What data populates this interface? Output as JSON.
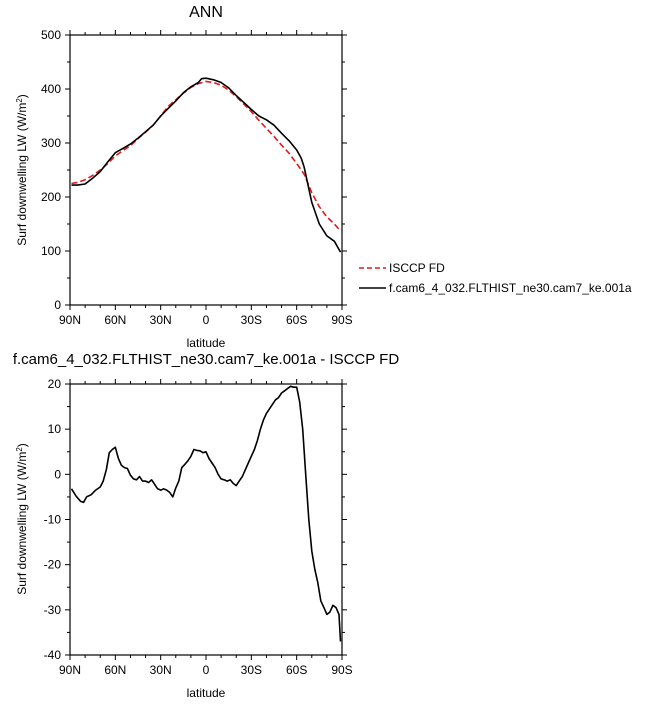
{
  "chart_data": [
    {
      "type": "line",
      "title": "ANN",
      "xlabel": "latitude",
      "ylabel": "Surf downwelling LW (W/m",
      "ylabel_sup": "2",
      "ylabel_close": ")",
      "xlim": [
        90,
        -90
      ],
      "ylim": [
        0,
        500
      ],
      "xticks": [
        90,
        60,
        30,
        0,
        -30,
        -60,
        -90
      ],
      "xtick_labels": [
        "90N",
        "60N",
        "30N",
        "0",
        "30S",
        "60S",
        "90S"
      ],
      "yticks": [
        0,
        100,
        200,
        300,
        400,
        500
      ],
      "ytick_labels": [
        "0",
        "100",
        "200",
        "300",
        "400",
        "500"
      ],
      "legend_position": "right",
      "series": [
        {
          "name": "ISCCP FD",
          "color": "#e31a1c",
          "dash": "dashed",
          "x": [
            89,
            85,
            80,
            75,
            70,
            65,
            60,
            55,
            50,
            45,
            40,
            35,
            30,
            25,
            20,
            15,
            10,
            5,
            0,
            -5,
            -10,
            -15,
            -20,
            -25,
            -30,
            -35,
            -40,
            -45,
            -50,
            -55,
            -60,
            -65,
            -70,
            -75,
            -80,
            -85,
            -89
          ],
          "y": [
            225,
            227,
            232,
            240,
            250,
            262,
            276,
            286,
            295,
            308,
            320,
            333,
            350,
            368,
            380,
            392,
            403,
            410,
            414,
            412,
            407,
            398,
            386,
            372,
            358,
            342,
            327,
            312,
            296,
            281,
            262,
            242,
            208,
            182,
            163,
            150,
            137
          ]
        },
        {
          "name": "f.cam6_4_032.FLTHIST_ne30.cam7_ke.001a",
          "color": "#000000",
          "dash": "solid",
          "x": [
            89,
            85,
            80,
            75,
            70,
            65,
            60,
            55,
            50,
            45,
            40,
            35,
            30,
            25,
            20,
            15,
            10,
            5,
            3,
            0,
            -5,
            -10,
            -15,
            -20,
            -25,
            -30,
            -35,
            -40,
            -45,
            -50,
            -55,
            -60,
            -63,
            -65,
            -70,
            -75,
            -80,
            -85,
            -89
          ],
          "y": [
            222,
            222,
            224,
            235,
            247,
            265,
            282,
            290,
            298,
            309,
            321,
            333,
            350,
            364,
            378,
            393,
            404,
            412,
            419,
            420,
            417,
            412,
            402,
            388,
            375,
            362,
            350,
            343,
            333,
            318,
            304,
            287,
            272,
            255,
            190,
            150,
            128,
            118,
            98
          ]
        }
      ]
    },
    {
      "type": "line",
      "title": "f.cam6_4_032.FLTHIST_ne30.cam7_ke.001a - ISCCP FD",
      "xlabel": "latitude",
      "ylabel": "Surf downwelling LW (W/m",
      "ylabel_sup": "2",
      "ylabel_close": ")",
      "xlim": [
        90,
        -90
      ],
      "ylim": [
        -40,
        20
      ],
      "xticks": [
        90,
        60,
        30,
        0,
        -30,
        -60,
        -90
      ],
      "xtick_labels": [
        "90N",
        "60N",
        "30N",
        "0",
        "30S",
        "60S",
        "90S"
      ],
      "yticks": [
        -40,
        -30,
        -20,
        -10,
        0,
        10,
        20
      ],
      "ytick_labels": [
        "-40",
        "-30",
        "-20",
        "-10",
        "0",
        "10",
        "20"
      ],
      "series": [
        {
          "color": "#000000",
          "dash": "solid",
          "x": [
            89,
            86,
            83,
            81,
            79,
            76,
            73,
            70,
            68,
            66,
            64,
            62,
            60,
            58,
            56,
            54,
            52,
            50,
            48,
            46,
            44,
            42,
            40,
            38,
            36,
            34,
            32,
            30,
            28,
            26,
            24,
            22,
            20,
            18,
            16,
            14,
            12,
            10,
            8,
            6,
            4,
            2,
            0,
            -2,
            -4,
            -6,
            -8,
            -10,
            -12,
            -14,
            -16,
            -18,
            -20,
            -22,
            -24,
            -26,
            -28,
            -30,
            -32,
            -34,
            -36,
            -38,
            -40,
            -42,
            -44,
            -46,
            -48,
            -50,
            -52,
            -54,
            -56,
            -58,
            -60,
            -62,
            -64,
            -66,
            -68,
            -70,
            -72,
            -74,
            -76,
            -78,
            -80,
            -82,
            -84,
            -86,
            -88,
            -89
          ],
          "y": [
            -3.2,
            -4.8,
            -6,
            -6.2,
            -5,
            -4.5,
            -3.5,
            -2.8,
            -1.5,
            1,
            4.8,
            5.5,
            6,
            3.5,
            2,
            1.5,
            1.3,
            -0.2,
            -1,
            -1.2,
            -0.5,
            -1.5,
            -1.5,
            -1.8,
            -1.2,
            -2.2,
            -3.2,
            -3.5,
            -3.2,
            -3.5,
            -4,
            -5,
            -3,
            -1.5,
            1.5,
            2.2,
            3,
            4,
            5.5,
            5.3,
            5.2,
            4.8,
            5,
            3.5,
            2.5,
            1.5,
            0,
            -1,
            -1.2,
            -1.5,
            -1.2,
            -2,
            -2.5,
            -1.5,
            -0.5,
            1,
            2.5,
            4,
            5.5,
            7.5,
            10,
            12,
            13.5,
            14.5,
            15.5,
            16.5,
            17,
            18,
            18.5,
            19,
            19.5,
            19.3,
            19.3,
            16,
            10,
            0,
            -10,
            -17,
            -21,
            -24,
            -28,
            -29.5,
            -31,
            -30.5,
            -29,
            -29.5,
            -31,
            -37
          ]
        }
      ]
    }
  ]
}
